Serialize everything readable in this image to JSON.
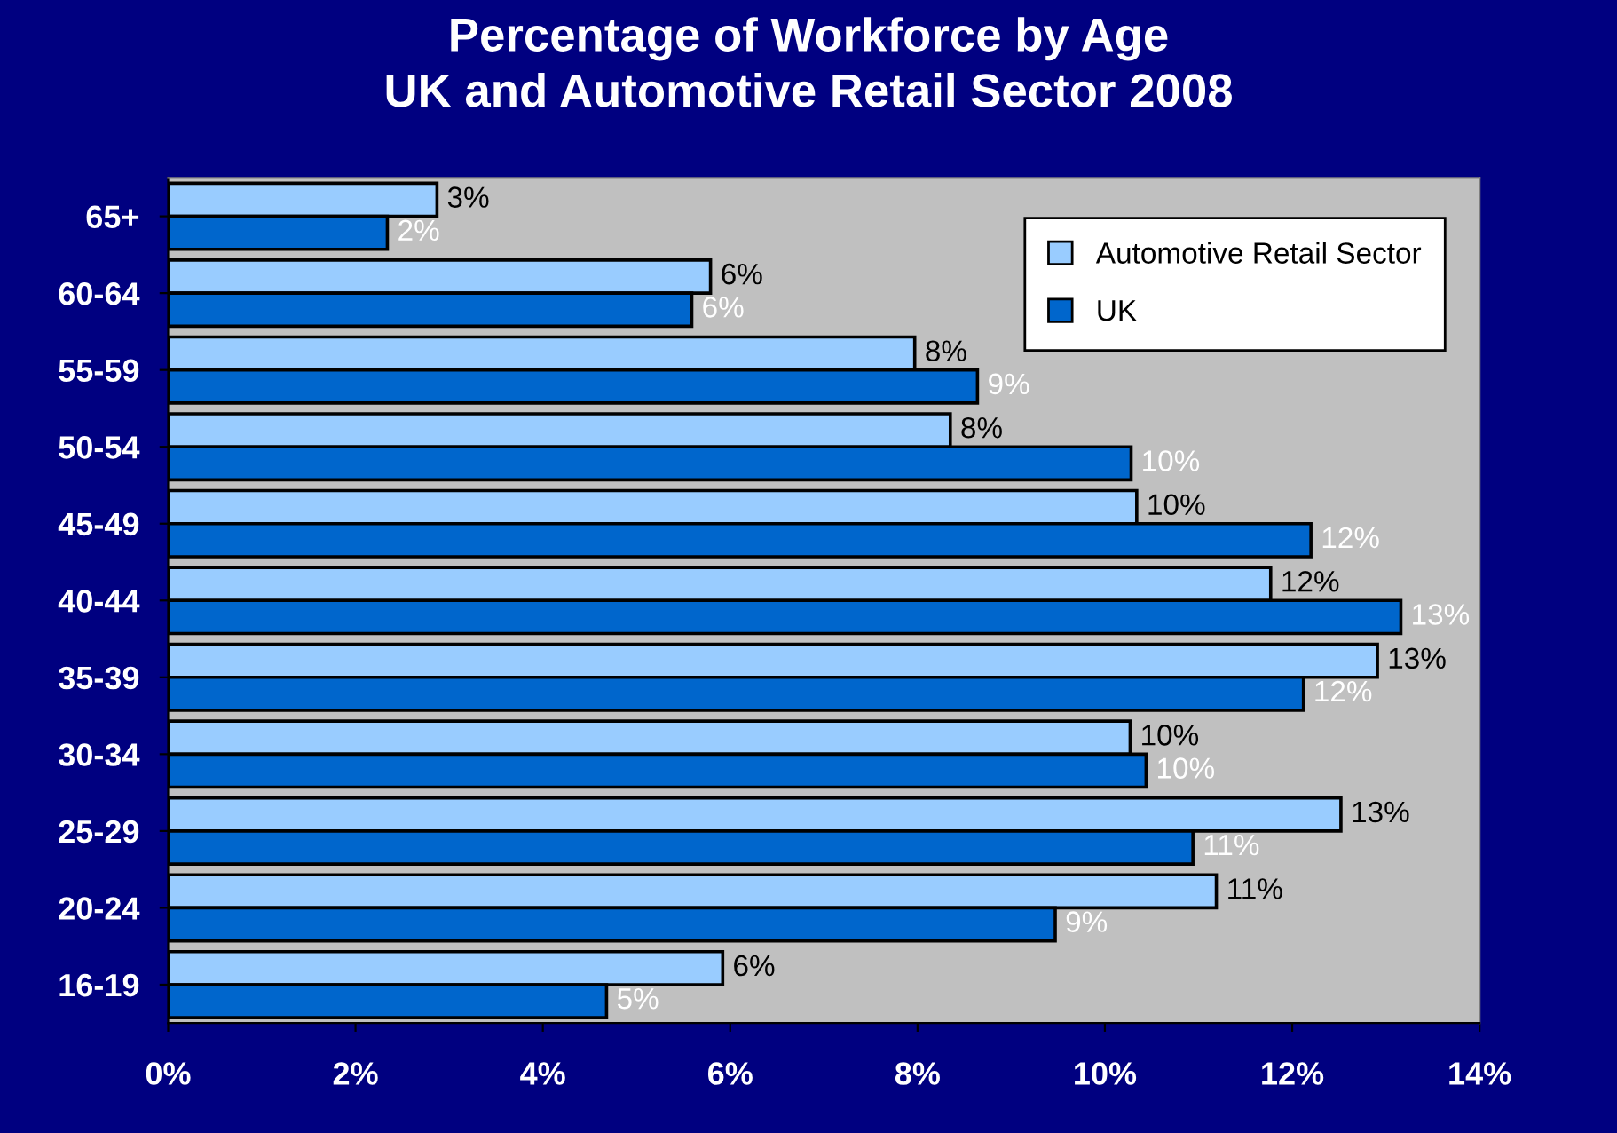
{
  "chart_data": {
    "type": "bar",
    "orientation": "horizontal",
    "title": "Percentage of Workforce by Age\nUK and Automotive Retail Sector 2008",
    "categories": [
      "65+",
      "60-64",
      "55-59",
      "50-54",
      "45-49",
      "40-44",
      "35-39",
      "30-34",
      "25-29",
      "20-24",
      "16-19"
    ],
    "series": [
      {
        "name": "Automotive Retail Sector",
        "color": "#99ccff",
        "values": [
          2.87,
          5.79,
          7.97,
          8.35,
          10.34,
          11.77,
          12.91,
          10.27,
          12.52,
          11.19,
          5.92
        ],
        "value_labels": [
          "3%",
          "6%",
          "8%",
          "8%",
          "10%",
          "12%",
          "13%",
          "10%",
          "13%",
          "11%",
          "6%"
        ]
      },
      {
        "name": "UK",
        "color": "#0066cc",
        "values": [
          2.34,
          5.59,
          8.64,
          10.28,
          12.2,
          13.16,
          12.12,
          10.44,
          10.94,
          9.47,
          4.68
        ],
        "value_labels": [
          "2%",
          "6%",
          "9%",
          "10%",
          "12%",
          "13%",
          "12%",
          "10%",
          "11%",
          "9%",
          "5%"
        ]
      }
    ],
    "xlim": [
      0,
      14
    ],
    "xticks": [
      {
        "value": 0,
        "label": "0%"
      },
      {
        "value": 2,
        "label": "2%"
      },
      {
        "value": 4,
        "label": "4%"
      },
      {
        "value": 6,
        "label": "6%"
      },
      {
        "value": 8,
        "label": "8%"
      },
      {
        "value": 10,
        "label": "10%"
      },
      {
        "value": 12,
        "label": "12%"
      },
      {
        "value": 14,
        "label": "14%"
      }
    ],
    "grid": false,
    "legend": "top right"
  }
}
